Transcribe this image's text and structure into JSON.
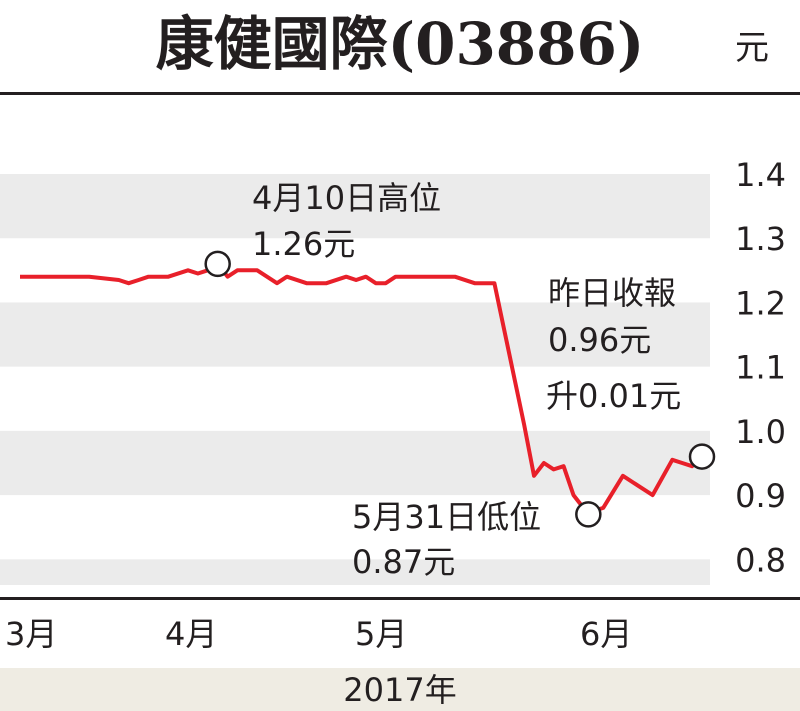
{
  "chart_data": {
    "type": "line",
    "title": "康健國際(03886)",
    "unit": "元",
    "x_labels": [
      "3月",
      "4月",
      "5月",
      "6月"
    ],
    "x_caption": "2017年",
    "yticks": [
      "1.4",
      "1.3",
      "1.2",
      "1.1",
      "1.0",
      "0.9",
      "0.8"
    ],
    "ytick_values": [
      1.4,
      1.3,
      1.2,
      1.1,
      1.0,
      0.9,
      0.8
    ],
    "ylim": [
      0.76,
      1.4
    ],
    "x_range": [
      0,
      69
    ],
    "grid": "alternating horizontal bands",
    "line_color": "#e8202a",
    "series": [
      {
        "values": [
          [
            0,
            1.24
          ],
          [
            7,
            1.24
          ],
          [
            10,
            1.235
          ],
          [
            11,
            1.23
          ],
          [
            12,
            1.235
          ],
          [
            13,
            1.24
          ],
          [
            15,
            1.24
          ],
          [
            17,
            1.25
          ],
          [
            18,
            1.245
          ],
          [
            19,
            1.25
          ],
          [
            20,
            1.26
          ],
          [
            21,
            1.24
          ],
          [
            22,
            1.25
          ],
          [
            24,
            1.25
          ],
          [
            26,
            1.23
          ],
          [
            27,
            1.24
          ],
          [
            29,
            1.23
          ],
          [
            31,
            1.23
          ],
          [
            33,
            1.24
          ],
          [
            34,
            1.235
          ],
          [
            35,
            1.24
          ],
          [
            36,
            1.23
          ],
          [
            37,
            1.23
          ],
          [
            38,
            1.24
          ],
          [
            44,
            1.24
          ],
          [
            46,
            1.23
          ],
          [
            48,
            1.23
          ],
          [
            51,
            1.01
          ],
          [
            52,
            0.93
          ],
          [
            53,
            0.95
          ],
          [
            54,
            0.94
          ],
          [
            55,
            0.945
          ],
          [
            56,
            0.9
          ],
          [
            57,
            0.88
          ],
          [
            57.5,
            0.87
          ],
          [
            58,
            0.875
          ],
          [
            59,
            0.88
          ],
          [
            61,
            0.93
          ],
          [
            63,
            0.91
          ],
          [
            64,
            0.9
          ],
          [
            66,
            0.955
          ],
          [
            67,
            0.95
          ],
          [
            68,
            0.945
          ],
          [
            68.5,
            0.96
          ],
          [
            69,
            0.96
          ]
        ]
      }
    ],
    "markers": [
      {
        "x": 20,
        "y": 1.26
      },
      {
        "x": 57.5,
        "y": 0.87
      },
      {
        "x": 69,
        "y": 0.96
      }
    ],
    "annotations": {
      "high_label": "4月10日高位",
      "high_value": "1.26元",
      "last_label": "昨日收報",
      "last_value": "0.96元",
      "last_change": "升0.01元",
      "low_label": "5月31日低位",
      "low_value": "0.87元"
    }
  }
}
